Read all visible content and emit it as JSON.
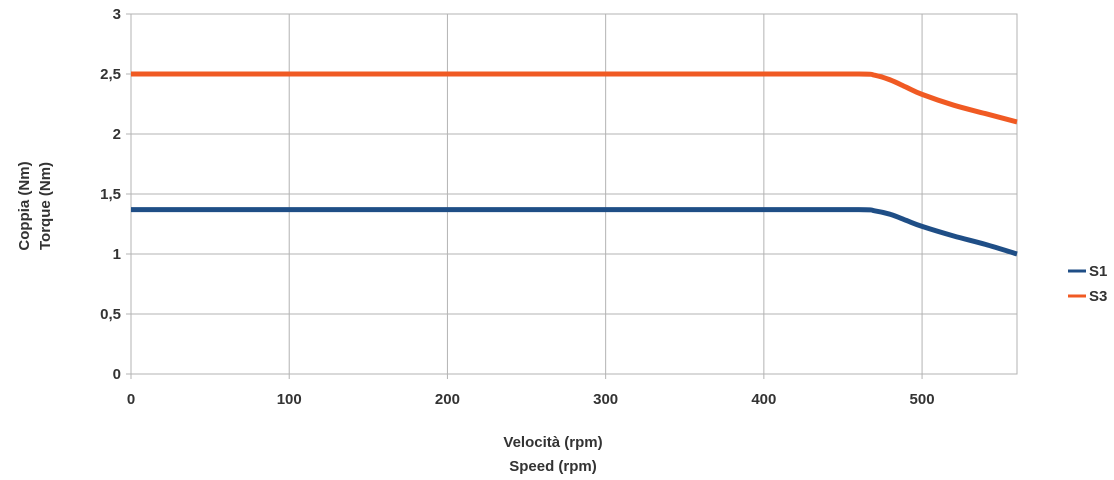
{
  "chart_data": {
    "type": "line",
    "xlabel": [
      "Velocità (rpm)",
      "Speed (rpm)"
    ],
    "ylabel": [
      "Coppia (Nm)",
      "Torque (Nm)"
    ],
    "xlim": [
      0,
      560
    ],
    "ylim": [
      0,
      3
    ],
    "x_ticks": [
      0,
      100,
      200,
      300,
      400,
      500
    ],
    "x_tick_labels": [
      "0",
      "100",
      "200",
      "300",
      "400",
      "500"
    ],
    "y_ticks": [
      0,
      0.5,
      1,
      1.5,
      2,
      2.5,
      3
    ],
    "y_tick_labels": [
      "0",
      "0,5",
      "1",
      "1,5",
      "2",
      "2,5",
      "3"
    ],
    "grid": true,
    "legend_position": "right",
    "series": [
      {
        "name": "S1",
        "color": "#1f4e86",
        "x": [
          0,
          100,
          200,
          300,
          400,
          460,
          470,
          480,
          490,
          500,
          520,
          540,
          560
        ],
        "y": [
          1.37,
          1.37,
          1.37,
          1.37,
          1.37,
          1.37,
          1.36,
          1.33,
          1.28,
          1.23,
          1.15,
          1.08,
          1.0
        ]
      },
      {
        "name": "S3",
        "color": "#f05a23",
        "x": [
          0,
          100,
          200,
          300,
          400,
          460,
          470,
          480,
          490,
          500,
          520,
          540,
          560
        ],
        "y": [
          2.5,
          2.5,
          2.5,
          2.5,
          2.5,
          2.5,
          2.49,
          2.45,
          2.39,
          2.33,
          2.24,
          2.17,
          2.1
        ]
      }
    ]
  }
}
